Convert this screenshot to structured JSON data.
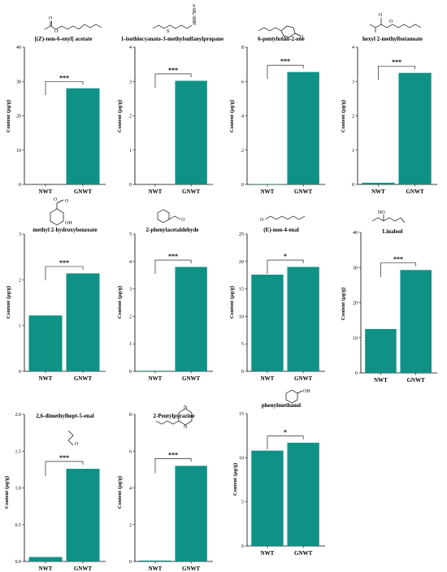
{
  "colors": {
    "bar": "#0f9186",
    "axis": "#000000"
  },
  "chart_data": [
    {
      "type": "bar",
      "title": "[(Z)-non-6-enyl] acetate",
      "ylabel": "Content (μg/g)",
      "xlabel": "",
      "categories": [
        "NWT",
        "GNWT"
      ],
      "values": [
        0,
        28
      ],
      "ylim": [
        0,
        40
      ],
      "yticks": [
        0,
        10,
        20,
        30,
        40
      ],
      "ytick_labels": [
        "0",
        "10",
        "20",
        "30",
        "40"
      ],
      "significance": "***",
      "grid": false
    },
    {
      "type": "bar",
      "title": "1-isothiocyanato-3-methylsulfanylpropane",
      "ylabel": "Content (μg/g)",
      "xlabel": "",
      "categories": [
        "NWT",
        "GNWT"
      ],
      "values": [
        0,
        3.02
      ],
      "ylim": [
        0,
        4
      ],
      "yticks": [
        0,
        1,
        2,
        3,
        4
      ],
      "ytick_labels": [
        "0",
        "1",
        "2",
        "3",
        "4"
      ],
      "significance": "***",
      "grid": false
    },
    {
      "type": "bar",
      "title": "6-pentyloxan-2-one",
      "ylabel": "Content (μg/g)",
      "xlabel": "",
      "categories": [
        "NWT",
        "GNWT"
      ],
      "values": [
        0.02,
        6.55
      ],
      "ylim": [
        0,
        8
      ],
      "yticks": [
        0,
        2,
        4,
        6,
        8
      ],
      "ytick_labels": [
        "0",
        "2",
        "4",
        "6",
        "8"
      ],
      "significance": "***",
      "grid": false
    },
    {
      "type": "bar",
      "title": "hexyl 2-methylbutanoate",
      "ylabel": "Content (μg/g)",
      "xlabel": "",
      "categories": [
        "NWT",
        "GNWT"
      ],
      "values": [
        0.05,
        3.25
      ],
      "ylim": [
        0,
        4
      ],
      "yticks": [
        0,
        1,
        2,
        3,
        4
      ],
      "ytick_labels": [
        "0",
        "1",
        "2",
        "3",
        "4"
      ],
      "significance": "***",
      "grid": false
    },
    {
      "type": "bar",
      "title": "methyl 2-hydroxybenzoate",
      "ylabel": "Content (μg/g)",
      "xlabel": "",
      "categories": [
        "NWT",
        "GNWT"
      ],
      "values": [
        1.22,
        2.14
      ],
      "ylim": [
        0,
        3
      ],
      "yticks": [
        0,
        1,
        2,
        3
      ],
      "ytick_labels": [
        "0",
        "1",
        "2",
        "3"
      ],
      "significance": "***",
      "grid": false
    },
    {
      "type": "bar",
      "title": "2-phenylacetaldehyde",
      "ylabel": "Content (μg/g)",
      "xlabel": "",
      "categories": [
        "NWT",
        "GNWT"
      ],
      "values": [
        0.02,
        3.8
      ],
      "ylim": [
        0,
        5
      ],
      "yticks": [
        0,
        1,
        2,
        3,
        4,
        5
      ],
      "ytick_labels": [
        "0",
        "1",
        "2",
        "3",
        "4",
        "5"
      ],
      "significance": "***",
      "grid": false
    },
    {
      "type": "bar",
      "title": "(E)-non-4-enal",
      "ylabel": "Content (μg/g)",
      "xlabel": "",
      "categories": [
        "NWT",
        "GNWT"
      ],
      "values": [
        17.6,
        19
      ],
      "ylim": [
        0,
        25
      ],
      "yticks": [
        0,
        5,
        10,
        15,
        20,
        25
      ],
      "ytick_labels": [
        "0",
        "5",
        "10",
        "15",
        "20",
        "25"
      ],
      "significance": "*",
      "grid": false
    },
    {
      "type": "bar",
      "title": "Linalool",
      "ylabel": "Content (μg/g)",
      "xlabel": "",
      "categories": [
        "NWT",
        "GNWT"
      ],
      "values": [
        12.5,
        29.3
      ],
      "ylim": [
        0,
        40
      ],
      "yticks": [
        0,
        10,
        20,
        30,
        40
      ],
      "ytick_labels": [
        "0",
        "10",
        "20",
        "30",
        "40"
      ],
      "significance": "***",
      "grid": false
    },
    {
      "type": "bar",
      "title": "2,6-dimethylhept-5-enal",
      "ylabel": "Content (μg/g)",
      "xlabel": "",
      "categories": [
        "NWT",
        "GNWT"
      ],
      "values": [
        0.06,
        1.26
      ],
      "ylim": [
        0,
        2
      ],
      "yticks": [
        0,
        0.5,
        1,
        1.5,
        2
      ],
      "ytick_labels": [
        "0.0",
        "0.5",
        "1.0",
        "1.5",
        "2.0"
      ],
      "significance": "***",
      "grid": false
    },
    {
      "type": "bar",
      "title": "2-Pentylpyrazine",
      "ylabel": "Content (μg/g)",
      "xlabel": "",
      "categories": [
        "NWT",
        "GNWT"
      ],
      "values": [
        0.05,
        5.2
      ],
      "ylim": [
        0,
        8
      ],
      "yticks": [
        0,
        2,
        4,
        6,
        8
      ],
      "ytick_labels": [
        "0",
        "2",
        "4",
        "6",
        "8"
      ],
      "significance": "***",
      "grid": false
    },
    {
      "type": "bar",
      "title": "phenylmethanol",
      "ylabel": "Content (μg/g)",
      "xlabel": "",
      "categories": [
        "NWT",
        "GNWT"
      ],
      "values": [
        10.8,
        11.7
      ],
      "ylim": [
        0,
        15
      ],
      "yticks": [
        0,
        5,
        10,
        15
      ],
      "ytick_labels": [
        "0",
        "5",
        "10",
        "15"
      ],
      "significance": "*",
      "grid": false
    }
  ],
  "structures": [
    {
      "icon": "ester-chain-structure-icon",
      "atoms": [
        "O",
        "O"
      ]
    },
    {
      "icon": "isothiocyanate-structure-icon",
      "atoms": [
        "S",
        "S",
        "C",
        "N"
      ]
    },
    {
      "icon": "lactone-structure-icon",
      "atoms": [
        "O",
        "O"
      ]
    },
    {
      "icon": "ester-branched-structure-icon",
      "atoms": [
        "O",
        "O"
      ]
    },
    {
      "icon": "methyl-salicylate-structure-icon",
      "atoms": [
        "O",
        "O",
        "OH"
      ]
    },
    {
      "icon": "phenylacetaldehyde-structure-icon",
      "atoms": [
        "O"
      ]
    },
    {
      "icon": "nonenal-structure-icon",
      "atoms": [
        "O"
      ]
    },
    {
      "icon": "linalool-structure-icon",
      "atoms": [
        "HO"
      ]
    },
    {
      "icon": "dimethylheptenal-structure-icon",
      "atoms": [
        "O"
      ]
    },
    {
      "icon": "pyrazine-structure-icon",
      "atoms": [
        "N",
        "N"
      ]
    },
    {
      "icon": "benzyl-alcohol-structure-icon",
      "atoms": [
        "OH"
      ]
    }
  ]
}
